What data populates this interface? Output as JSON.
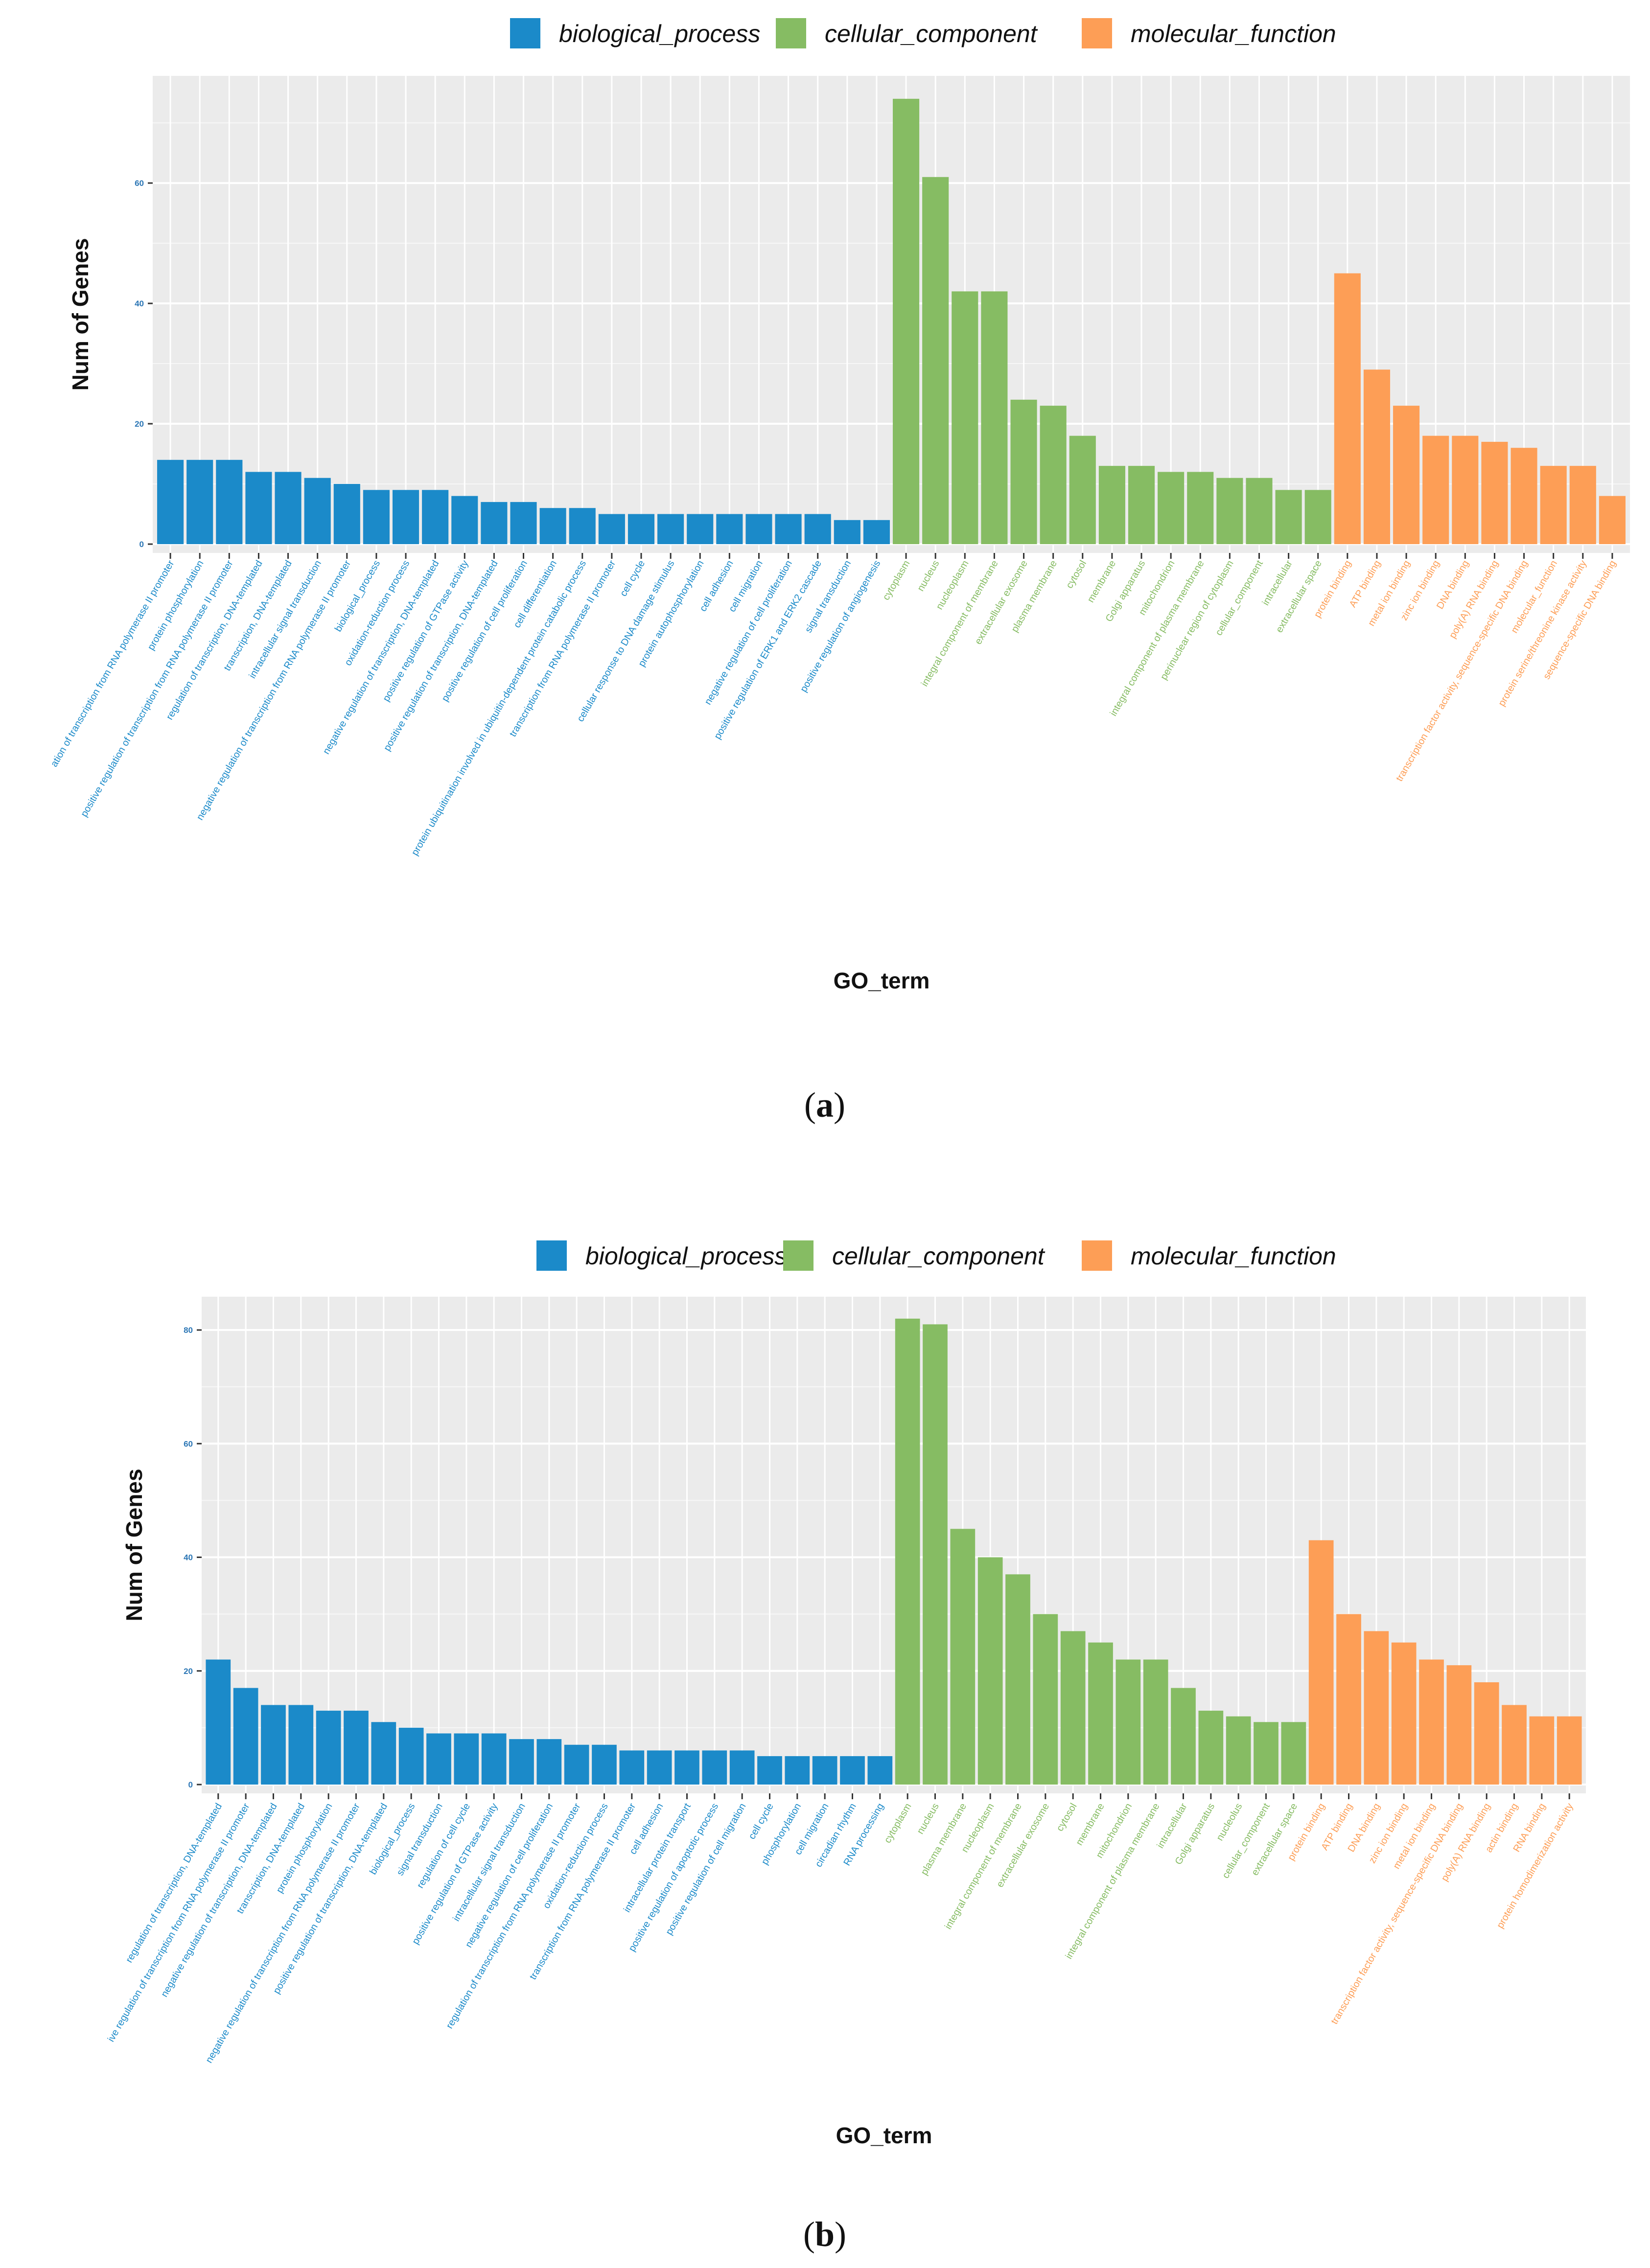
{
  "colors": {
    "biological_process": "#1b8ac9",
    "cellular_component": "#86bc63",
    "molecular_function": "#fd9e56",
    "panel_background": "#ebebeb",
    "grid": "#ffffff"
  },
  "chart_data": [
    {
      "type": "bar",
      "panel_label": "a",
      "xlabel": "GO_term",
      "ylabel": "Num of Genes",
      "ylim": [
        0,
        77
      ],
      "yticks": [
        0,
        20,
        40,
        60
      ],
      "legend": [
        {
          "key": "biological_process",
          "label": "biological_process"
        },
        {
          "key": "cellular_component",
          "label": "cellular_component"
        },
        {
          "key": "molecular_function",
          "label": "molecular_function"
        }
      ],
      "categories": [
        "negative regulation of transcription from RNA polymerase II promoter",
        "protein phosphorylation",
        "positive regulation of transcription from RNA polymerase II promoter",
        "regulation of transcription, DNA-templated",
        "transcription, DNA-templated",
        "intracellular signal transduction",
        "negative regulation of transcription from RNA polymerase II promoter",
        "biological_process",
        "oxidation-reduction process",
        "negative regulation of transcription, DNA-templated",
        "positive regulation of GTPase activity",
        "positive regulation of transcription, DNA-templated",
        "positive regulation of cell proliferation",
        "cell differentiation",
        "protein ubiquitination involved in ubiquitin-dependent protein catabolic process",
        "transcription from RNA polymerase II promoter",
        "cell cycle",
        "cellular response to DNA damage stimulus",
        "protein autophosphorylation",
        "cell adhesion",
        "cell migration",
        "negative regulation of cell proliferation",
        "positive regulation of ERK1 and ERK2 cascade",
        "signal transduction",
        "positive regulation of angiogenesis",
        "cytoplasm",
        "nucleus",
        "nucleoplasm",
        "integral component of membrane",
        "extracellular exosome",
        "plasma membrane",
        "cytosol",
        "membrane",
        "Golgi apparatus",
        "mitochondrion",
        "integral component of plasma membrane",
        "perinuclear region of cytoplasm",
        "cellular_component",
        "intracellular",
        "extracellular space",
        "protein binding",
        "ATP binding",
        "metal ion binding",
        "zinc ion binding",
        "DNA binding",
        "poly(A) RNA binding",
        "transcription factor activity, sequence-specific DNA binding",
        "molecular_function",
        "protein serine/threonine kinase activity",
        "sequence-specific DNA binding"
      ],
      "display_labels": [
        "ation of transcription from RNA polymerase II promoter",
        "protein phosphorylation",
        "positive regulation of transcription from RNA polymerase II promoter",
        "regulation of transcription, DNA-templated",
        "transcription, DNA-templated",
        "intracellular signal transduction",
        "negative regulation of transcription from RNA polymerase II promoter",
        "biological_process",
        "oxidation-reduction process",
        "negative regulation of transcription, DNA-templated",
        "positive regulation of GTPase activity",
        "positive regulation of transcription, DNA-templated",
        "positive regulation of cell proliferation",
        "cell differentiation",
        "protein ubiquitination involved in ubiquitin-dependent protein catabolic process",
        "transcription from RNA polymerase II promoter",
        "cell cycle",
        "cellular response to DNA damage stimulus",
        "protein autophosphorylation",
        "cell adhesion",
        "cell migration",
        "negative regulation of cell proliferation",
        "positive regulation of ERK1 and ERK2 cascade",
        "signal transduction",
        "positive regulation of angiogenesis",
        "cytoplasm",
        "nucleus",
        "nucleoplasm",
        "integral component of membrane",
        "extracellular exosome",
        "plasma membrane",
        "cytosol",
        "membrane",
        "Golgi apparatus",
        "mitochondrion",
        "integral component of plasma membrane",
        "perinuclear region of cytoplasm",
        "cellular_component",
        "intracellular",
        "extracellular space",
        "protein binding",
        "ATP binding",
        "metal ion binding",
        "zinc ion binding",
        "DNA binding",
        "poly(A) RNA binding",
        "transcription factor activity, sequence-specific DNA binding",
        "molecular_function",
        "protein serine/threonine kinase activity",
        "sequence-specific DNA binding"
      ],
      "groups": [
        "biological_process",
        "biological_process",
        "biological_process",
        "biological_process",
        "biological_process",
        "biological_process",
        "biological_process",
        "biological_process",
        "biological_process",
        "biological_process",
        "biological_process",
        "biological_process",
        "biological_process",
        "biological_process",
        "biological_process",
        "biological_process",
        "biological_process",
        "biological_process",
        "biological_process",
        "biological_process",
        "biological_process",
        "biological_process",
        "biological_process",
        "biological_process",
        "biological_process",
        "cellular_component",
        "cellular_component",
        "cellular_component",
        "cellular_component",
        "cellular_component",
        "cellular_component",
        "cellular_component",
        "cellular_component",
        "cellular_component",
        "cellular_component",
        "cellular_component",
        "cellular_component",
        "cellular_component",
        "cellular_component",
        "cellular_component",
        "molecular_function",
        "molecular_function",
        "molecular_function",
        "molecular_function",
        "molecular_function",
        "molecular_function",
        "molecular_function",
        "molecular_function",
        "molecular_function",
        "molecular_function"
      ],
      "values": [
        14,
        14,
        14,
        12,
        12,
        11,
        10,
        9,
        9,
        9,
        8,
        7,
        7,
        6,
        6,
        5,
        5,
        5,
        5,
        5,
        5,
        5,
        5,
        4,
        4,
        74,
        61,
        42,
        42,
        24,
        23,
        18,
        13,
        13,
        12,
        12,
        11,
        11,
        9,
        9,
        45,
        29,
        23,
        18,
        18,
        17,
        16,
        13,
        13,
        8
      ]
    },
    {
      "type": "bar",
      "panel_label": "b",
      "xlabel": "GO_term",
      "ylabel": "Num of Genes",
      "ylim": [
        0,
        85
      ],
      "yticks": [
        0,
        20,
        40,
        60,
        80
      ],
      "legend": [
        {
          "key": "biological_process",
          "label": "biological_process"
        },
        {
          "key": "cellular_component",
          "label": "cellular_component"
        },
        {
          "key": "molecular_function",
          "label": "molecular_function"
        }
      ],
      "categories": [
        "regulation of transcription, DNA-templated",
        "positive regulation of transcription from RNA polymerase II promoter",
        "negative regulation of transcription, DNA-templated",
        "transcription, DNA-templated",
        "protein phosphorylation",
        "negative regulation of transcription from RNA polymerase II promoter",
        "positive regulation of transcription, DNA-templated",
        "biological_process",
        "signal transduction",
        "regulation of cell cycle",
        "positive regulation of GTPase activity",
        "intracellular signal transduction",
        "negative regulation of cell proliferation",
        "regulation of transcription from RNA polymerase II promoter",
        "oxidation-reduction process",
        "transcription from RNA polymerase II promoter",
        "cell adhesion",
        "intracellular protein transport",
        "positive regulation of apoptotic process",
        "positive regulation of cell migration",
        "cell cycle",
        "phosphorylation",
        "cell migration",
        "circadian rhythm",
        "RNA processing",
        "cytoplasm",
        "nucleus",
        "plasma membrane",
        "nucleoplasm",
        "integral component of membrane",
        "extracellular exosome",
        "cytosol",
        "membrane",
        "mitochondrion",
        "integral component of plasma membrane",
        "intracellular",
        "Golgi apparatus",
        "nucleolus",
        "cellular_component",
        "extracellular space",
        "protein binding",
        "ATP binding",
        "DNA binding",
        "zinc ion binding",
        "metal ion binding",
        "transcription factor activity, sequence-specific DNA binding",
        "poly(A) RNA binding",
        "actin binding",
        "RNA binding",
        "protein homodimerization activity"
      ],
      "display_labels": [
        "regulation of transcription, DNA-templated",
        "ive regulation of transcription from RNA polymerase II promoter",
        "negative regulation of transcription, DNA-templated",
        "transcription, DNA-templated",
        "protein phosphorylation",
        "negative regulation of transcription from RNA polymerase II promoter",
        "positive regulation of transcription, DNA-templated",
        "biological_process",
        "signal transduction",
        "regulation of cell cycle",
        "positive regulation of GTPase activity",
        "intracellular signal transduction",
        "negative regulation of cell proliferation",
        "regulation of transcription from RNA polymerase II promoter",
        "oxidation-reduction process",
        "transcription from RNA polymerase II promoter",
        "cell adhesion",
        "intracellular protein transport",
        "positive regulation of apoptotic process",
        "positive regulation of cell migration",
        "cell cycle",
        "phosphorylation",
        "cell migration",
        "circadian rhythm",
        "RNA processing",
        "cytoplasm",
        "nucleus",
        "plasma membrane",
        "nucleoplasm",
        "integral component of membrane",
        "extracellular exosome",
        "cytosol",
        "membrane",
        "mitochondrion",
        "integral component of plasma membrane",
        "intracellular",
        "Golgi apparatus",
        "nucleolus",
        "cellular_component",
        "extracellular space",
        "protein binding",
        "ATP binding",
        "DNA binding",
        "zinc ion binding",
        "metal ion binding",
        "transcription factor activity, sequence-specific DNA binding",
        "poly(A) RNA binding",
        "actin binding",
        "RNA binding",
        "protein homodimerization activity"
      ],
      "groups": [
        "biological_process",
        "biological_process",
        "biological_process",
        "biological_process",
        "biological_process",
        "biological_process",
        "biological_process",
        "biological_process",
        "biological_process",
        "biological_process",
        "biological_process",
        "biological_process",
        "biological_process",
        "biological_process",
        "biological_process",
        "biological_process",
        "biological_process",
        "biological_process",
        "biological_process",
        "biological_process",
        "biological_process",
        "biological_process",
        "biological_process",
        "biological_process",
        "biological_process",
        "cellular_component",
        "cellular_component",
        "cellular_component",
        "cellular_component",
        "cellular_component",
        "cellular_component",
        "cellular_component",
        "cellular_component",
        "cellular_component",
        "cellular_component",
        "cellular_component",
        "cellular_component",
        "cellular_component",
        "cellular_component",
        "cellular_component",
        "molecular_function",
        "molecular_function",
        "molecular_function",
        "molecular_function",
        "molecular_function",
        "molecular_function",
        "molecular_function",
        "molecular_function",
        "molecular_function",
        "molecular_function"
      ],
      "values": [
        22,
        17,
        14,
        14,
        13,
        13,
        11,
        10,
        9,
        9,
        9,
        8,
        8,
        7,
        7,
        6,
        6,
        6,
        6,
        6,
        5,
        5,
        5,
        5,
        5,
        82,
        81,
        45,
        40,
        37,
        30,
        27,
        25,
        22,
        22,
        17,
        13,
        12,
        11,
        11,
        43,
        30,
        27,
        25,
        22,
        21,
        18,
        14,
        12,
        12
      ]
    }
  ]
}
